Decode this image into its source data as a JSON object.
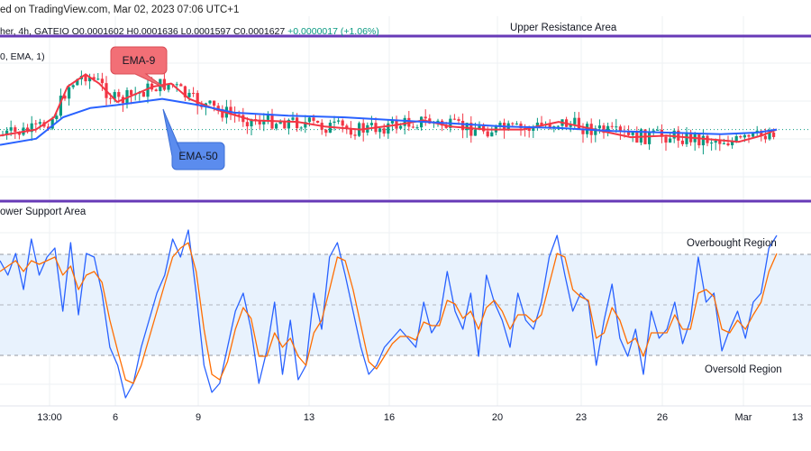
{
  "header": {
    "top_line": "ed on TradingView.com, Mar 02, 2023 07:06 UTC+1",
    "symbol_line": "her, 4h, GATEIO",
    "ohlc_line": "O0.0001602 H0.0001636 L0.0001597 C0.0001627",
    "change": "+0.0000017 (+1.06%)",
    "indicator_line": "0, EMA, 1)"
  },
  "annotations": {
    "upper_resistance": "Upper Resistance Area",
    "lower_support": "ower Support Area",
    "overbought": "Overbought Region",
    "oversold": "Oversold Region",
    "ema9_label": "EMA-9",
    "ema50_label": "EMA-50"
  },
  "colors": {
    "up_candle": "#089981",
    "down_candle": "#f23645",
    "ema9": "#f23645",
    "ema50": "#2962ff",
    "resistance_line": "#673ab7",
    "stoch_k": "#2962ff",
    "stoch_d": "#ff6d00",
    "band_fill": "#e8f2fd",
    "ema9_label_bg": "#f26f76",
    "ema50_label_bg": "#5b8cee"
  },
  "chart_data": [
    {
      "type": "candlestick",
      "panel": "price",
      "x_tick_labels": [
        "13:00",
        "6",
        "9",
        "13",
        "16",
        "20",
        "23",
        "26",
        "Mar",
        "13"
      ],
      "series": [
        {
          "name": "EMA-9",
          "kind": "line",
          "color": "#f23645",
          "points": [
            [
              0,
              0.62
            ],
            [
              40,
              0.58
            ],
            [
              60,
              0.5
            ],
            [
              75,
              0.3
            ],
            [
              95,
              0.22
            ],
            [
              110,
              0.28
            ],
            [
              130,
              0.4
            ],
            [
              150,
              0.35
            ],
            [
              170,
              0.3
            ],
            [
              190,
              0.28
            ],
            [
              210,
              0.38
            ],
            [
              240,
              0.45
            ],
            [
              280,
              0.52
            ],
            [
              330,
              0.53
            ],
            [
              360,
              0.56
            ],
            [
              400,
              0.58
            ],
            [
              440,
              0.55
            ],
            [
              470,
              0.52
            ],
            [
              500,
              0.56
            ],
            [
              540,
              0.58
            ],
            [
              580,
              0.58
            ],
            [
              620,
              0.53
            ],
            [
              660,
              0.58
            ],
            [
              700,
              0.63
            ],
            [
              740,
              0.62
            ],
            [
              780,
              0.64
            ],
            [
              820,
              0.66
            ],
            [
              845,
              0.62
            ],
            [
              862,
              0.58
            ]
          ]
        },
        {
          "name": "EMA-50",
          "kind": "line",
          "color": "#2962ff",
          "points": [
            [
              0,
              0.68
            ],
            [
              40,
              0.64
            ],
            [
              70,
              0.5
            ],
            [
              100,
              0.44
            ],
            [
              130,
              0.42
            ],
            [
              180,
              0.38
            ],
            [
              220,
              0.42
            ],
            [
              260,
              0.47
            ],
            [
              320,
              0.49
            ],
            [
              380,
              0.5
            ],
            [
              440,
              0.52
            ],
            [
              500,
              0.54
            ],
            [
              560,
              0.56
            ],
            [
              620,
              0.57
            ],
            [
              680,
              0.59
            ],
            [
              740,
              0.6
            ],
            [
              800,
              0.61
            ],
            [
              840,
              0.6
            ],
            [
              862,
              0.58
            ]
          ]
        }
      ]
    },
    {
      "type": "line",
      "panel": "stochastic",
      "horizontal_bands": [
        "Overbought Region",
        "Oversold Region"
      ],
      "series": [
        {
          "name": "",
          "kind": "line",
          "color": "#2962ff",
          "values": [
            0.78,
            0.7,
            0.82,
            0.62,
            0.9,
            0.7,
            0.8,
            0.85,
            0.5,
            0.88,
            0.48,
            0.82,
            0.8,
            0.6,
            0.3,
            0.2,
            0.02,
            0.1,
            0.3,
            0.45,
            0.6,
            0.7,
            0.9,
            0.8,
            0.95,
            0.6,
            0.2,
            0.05,
            0.1,
            0.3,
            0.5,
            0.6,
            0.4,
            0.1,
            0.28,
            0.55,
            0.15,
            0.45,
            0.12,
            0.2,
            0.6,
            0.4,
            0.8,
            0.88,
            0.7,
            0.5,
            0.3,
            0.15,
            0.2,
            0.3,
            0.35,
            0.4,
            0.35,
            0.3,
            0.55,
            0.38,
            0.45,
            0.72,
            0.5,
            0.4,
            0.6,
            0.25,
            0.7,
            0.55,
            0.45,
            0.3,
            0.6,
            0.45,
            0.4,
            0.55,
            0.8,
            0.92,
            0.7,
            0.5,
            0.6,
            0.55,
            0.2,
            0.45,
            0.65,
            0.35,
            0.25,
            0.4,
            0.15,
            0.5,
            0.35,
            0.4,
            0.55,
            0.32,
            0.45,
            0.8,
            0.55,
            0.6,
            0.28,
            0.4,
            0.5,
            0.35,
            0.55,
            0.6,
            0.85,
            0.92
          ]
        },
        {
          "name": "",
          "kind": "line",
          "color": "#ff6d00",
          "values": [
            0.72,
            0.75,
            0.78,
            0.72,
            0.78,
            0.76,
            0.78,
            0.8,
            0.7,
            0.75,
            0.62,
            0.7,
            0.72,
            0.66,
            0.45,
            0.28,
            0.12,
            0.1,
            0.2,
            0.35,
            0.5,
            0.65,
            0.8,
            0.85,
            0.88,
            0.72,
            0.4,
            0.15,
            0.12,
            0.22,
            0.4,
            0.52,
            0.46,
            0.25,
            0.25,
            0.38,
            0.3,
            0.35,
            0.25,
            0.2,
            0.38,
            0.45,
            0.62,
            0.8,
            0.78,
            0.62,
            0.42,
            0.22,
            0.18,
            0.25,
            0.32,
            0.36,
            0.36,
            0.34,
            0.44,
            0.42,
            0.42,
            0.56,
            0.54,
            0.46,
            0.5,
            0.4,
            0.52,
            0.56,
            0.5,
            0.4,
            0.48,
            0.48,
            0.44,
            0.48,
            0.65,
            0.82,
            0.8,
            0.62,
            0.58,
            0.56,
            0.35,
            0.38,
            0.52,
            0.45,
            0.32,
            0.35,
            0.25,
            0.38,
            0.38,
            0.38,
            0.48,
            0.4,
            0.4,
            0.6,
            0.62,
            0.58,
            0.4,
            0.38,
            0.45,
            0.4,
            0.48,
            0.55,
            0.72,
            0.82
          ]
        }
      ]
    }
  ]
}
